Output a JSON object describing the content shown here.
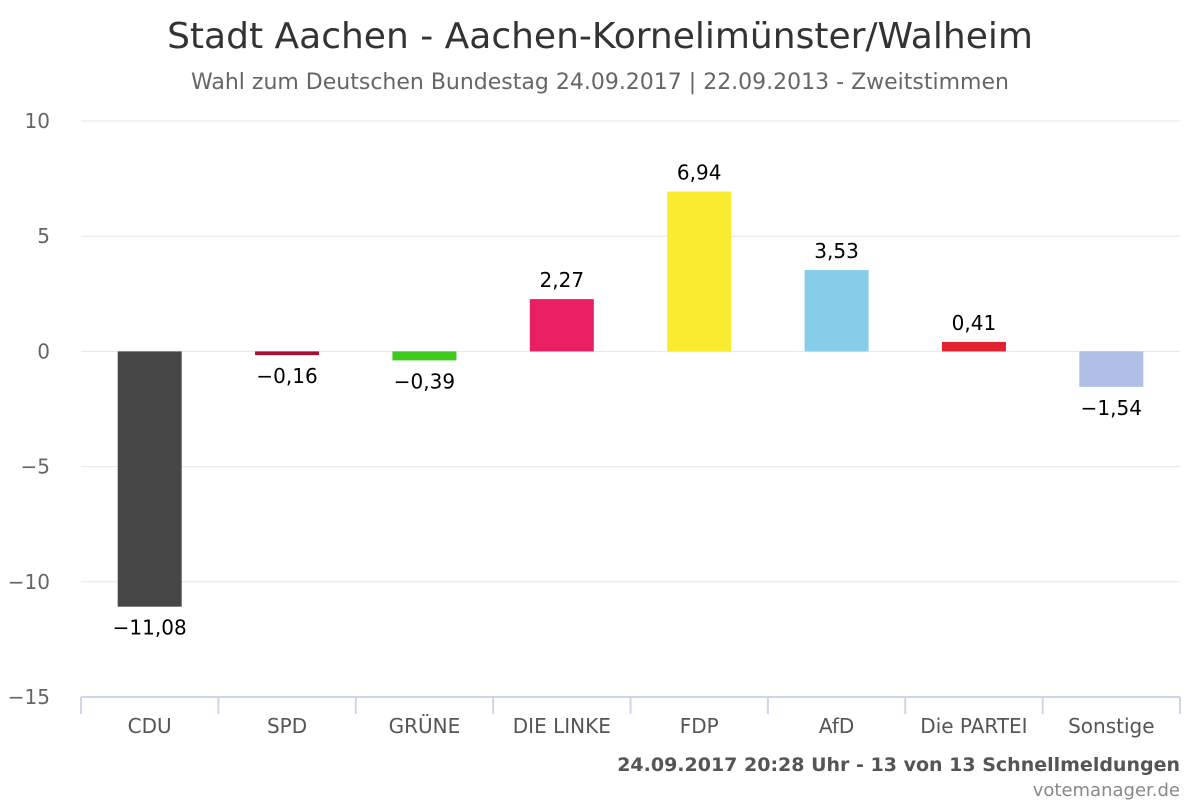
{
  "footer": {
    "timestamp": "24.09.2017 20:28 Uhr - 13 von 13 Schnellmeldungen",
    "credits": "votemanager.de"
  },
  "chart_data": {
    "type": "bar",
    "title": "Stadt Aachen - Aachen-Kornelimünster/Walheim",
    "subtitle": "Wahl zum Deutschen Bundestag 24.09.2017 | 22.09.2013 - Zweitstimmen",
    "xlabel": "",
    "ylabel": "",
    "ylim": [
      -15,
      10
    ],
    "yticks": [
      10,
      5,
      0,
      -5,
      -10,
      -15
    ],
    "grid": true,
    "categories": [
      "CDU",
      "SPD",
      "GRÜNE",
      "DIE LINKE",
      "FDP",
      "AfD",
      "Die PARTEI",
      "Sonstige"
    ],
    "values": [
      -11.08,
      -0.16,
      -0.39,
      2.27,
      6.94,
      3.53,
      0.41,
      -1.54
    ],
    "value_labels": [
      "-11,08",
      "-0,16",
      "-0,39",
      "2,27",
      "6,94",
      "3,53",
      "0,41",
      "-1,54"
    ],
    "colors": [
      "#474747",
      "#a8102b",
      "#3dc91e",
      "#e91e63",
      "#f9ec30",
      "#85cde9",
      "#e3222f",
      "#b0bfe6"
    ]
  }
}
